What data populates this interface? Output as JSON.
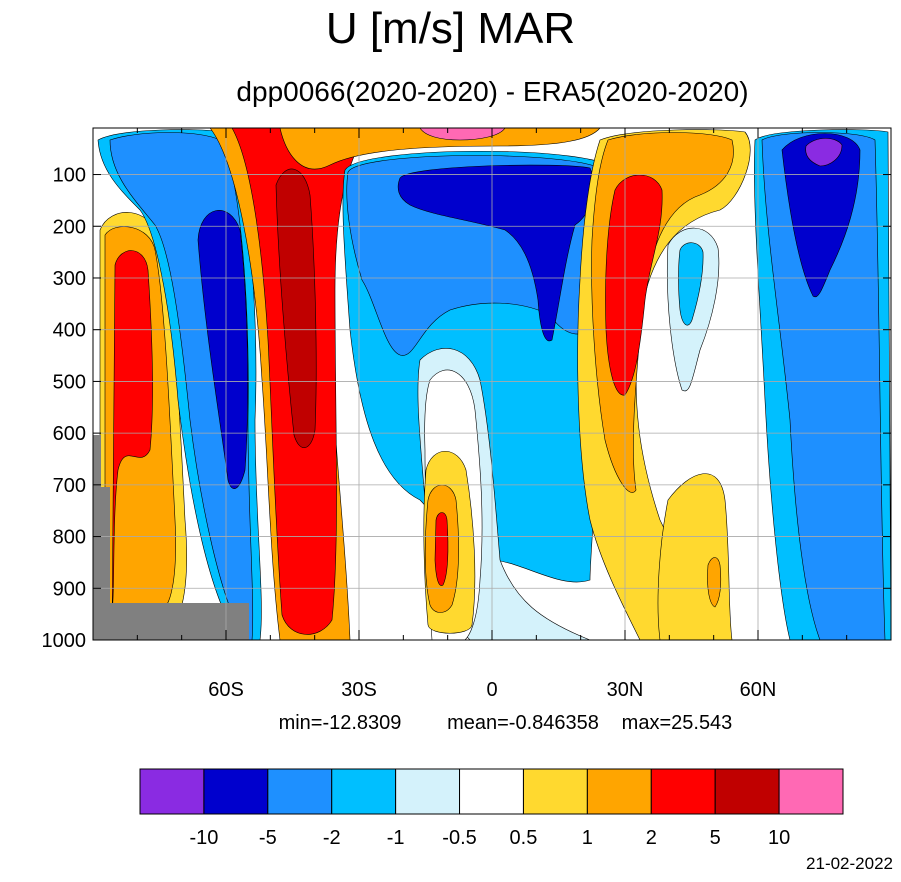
{
  "title": "U [m/s] MAR",
  "subtitle": "dpp0066(2020-2020) - ERA5(2020-2020)",
  "date": "21-02-2022",
  "stats": {
    "min_label": "min=-12.8309",
    "mean_label": "mean=-0.846358",
    "max_label": "max=25.543"
  },
  "chart_data": {
    "type": "heatmap",
    "title": "U [m/s] MAR",
    "subtitle": "dpp0066(2020-2020) - ERA5(2020-2020)",
    "x_ticks": [
      {
        "value": -60,
        "label": "60S"
      },
      {
        "value": -30,
        "label": "30S"
      },
      {
        "value": 0,
        "label": "0"
      },
      {
        "value": 30,
        "label": "30N"
      },
      {
        "value": 60,
        "label": "60N"
      }
    ],
    "xlim": [
      -90,
      90
    ],
    "y_ticks": [
      100,
      200,
      300,
      400,
      500,
      600,
      700,
      800,
      900,
      1000
    ],
    "ylim": [
      10,
      1000
    ],
    "grid": true,
    "colorbar": {
      "levels": [
        "-10",
        "-5",
        "-2",
        "-1",
        "-0.5",
        "0.5",
        "1",
        "2",
        "5",
        "10"
      ],
      "colors": [
        "#8a2be2",
        "#0000cd",
        "#1e90ff",
        "#00bfff",
        "#d4f2fb",
        "#ffffff",
        "#ffd92f",
        "#ffa500",
        "#ff0000",
        "#c00000",
        "#ff69b4"
      ]
    },
    "min": -12.8309,
    "mean": -0.846358,
    "max": 25.543,
    "missing_color": "#808080"
  }
}
